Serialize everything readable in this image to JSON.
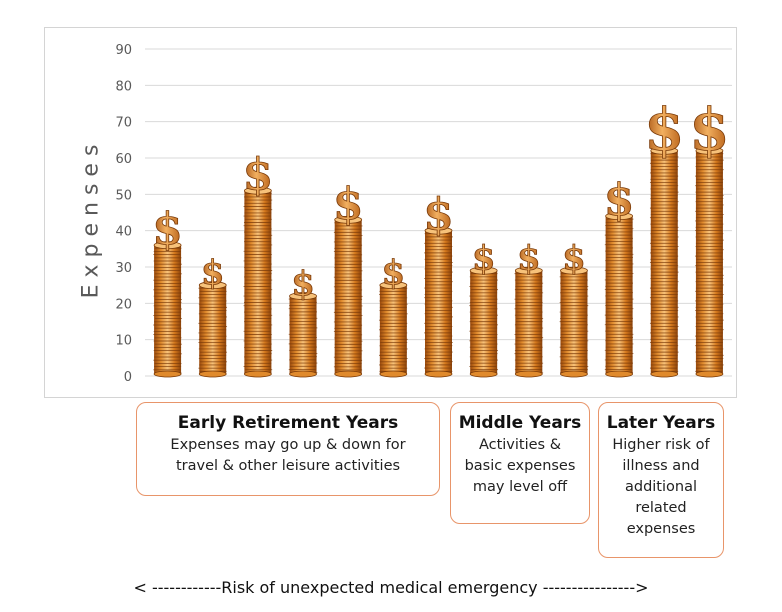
{
  "chart_data": {
    "type": "bar",
    "ylabel": "Expenses",
    "ylim": [
      0,
      90
    ],
    "yticks": [
      0,
      10,
      20,
      30,
      40,
      50,
      60,
      70,
      80,
      90
    ],
    "grid": true,
    "values": [
      36,
      25,
      51,
      22,
      43,
      25,
      40,
      29,
      29,
      29,
      44,
      62,
      62
    ],
    "bar_style": "coin stacks topped with dollar signs",
    "colors": {
      "coin": "#e08a2c",
      "coin_dark": "#7a3a08",
      "coin_light": "#f7c27a",
      "grid": "#d9d9d9"
    }
  },
  "annotations": {
    "early": {
      "title": "Early Retirement Years",
      "lines": [
        "Expenses may go up & down for",
        "travel & other leisure activities"
      ]
    },
    "middle": {
      "title": "Middle Years",
      "lines": [
        "Activities &",
        "basic expenses",
        "may level off"
      ]
    },
    "later": {
      "title": "Later Years",
      "lines": [
        "Higher risk of",
        "illness and",
        "additional",
        "related",
        "expenses"
      ]
    },
    "border_color": "#e8956a"
  },
  "footer": {
    "risk_text": "< ------------Risk of unexpected medical emergency ---------------->"
  }
}
